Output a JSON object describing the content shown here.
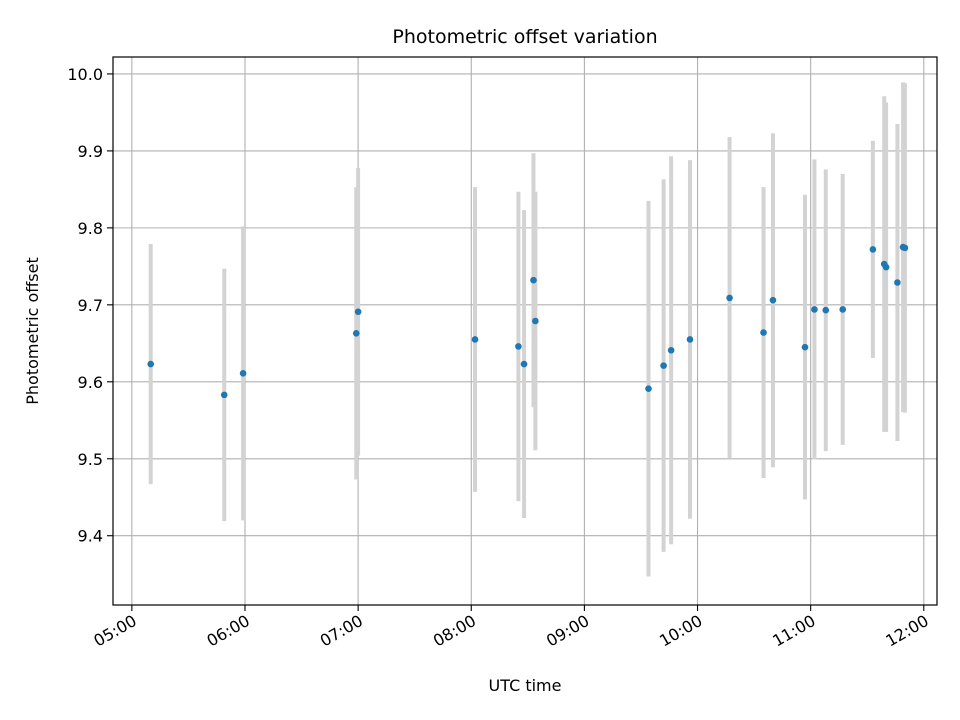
{
  "chart_data": {
    "type": "scatter",
    "title": "Photometric offset variation",
    "xlabel": "UTC time",
    "ylabel": "Photometric offset",
    "x_tick_labels": [
      "05:00",
      "06:00",
      "07:00",
      "08:00",
      "09:00",
      "10:00",
      "11:00",
      "12:00"
    ],
    "y_tick_labels": [
      "9.4",
      "9.5",
      "9.6",
      "9.7",
      "9.8",
      "9.9",
      "10.0"
    ],
    "xlim": [
      "04:50",
      "12:07"
    ],
    "ylim": [
      9.31,
      10.022
    ],
    "grid": true,
    "colors": {
      "points": "#1f77b4",
      "error_bars": "#d3d3d3",
      "grid": "#b0b0b0"
    },
    "points": [
      {
        "x": "05:10",
        "y": 9.623,
        "yerr": 0.156
      },
      {
        "x": "05:49",
        "y": 9.583,
        "yerr": 0.164
      },
      {
        "x": "05:59",
        "y": 9.611,
        "yerr": 0.191
      },
      {
        "x": "06:59",
        "y": 9.663,
        "yerr": 0.19
      },
      {
        "x": "07:00",
        "y": 9.691,
        "yerr": 0.187
      },
      {
        "x": "08:02",
        "y": 9.655,
        "yerr": 0.198
      },
      {
        "x": "08:25",
        "y": 9.646,
        "yerr": 0.201
      },
      {
        "x": "08:28",
        "y": 9.623,
        "yerr": 0.2
      },
      {
        "x": "08:33",
        "y": 9.732,
        "yerr": 0.165
      },
      {
        "x": "08:34",
        "y": 9.679,
        "yerr": 0.168
      },
      {
        "x": "09:34",
        "y": 9.591,
        "yerr": 0.244
      },
      {
        "x": "09:42",
        "y": 9.621,
        "yerr": 0.242
      },
      {
        "x": "09:46",
        "y": 9.641,
        "yerr": 0.252
      },
      {
        "x": "09:56",
        "y": 9.655,
        "yerr": 0.233
      },
      {
        "x": "10:17",
        "y": 9.709,
        "yerr": 0.209
      },
      {
        "x": "10:35",
        "y": 9.664,
        "yerr": 0.189
      },
      {
        "x": "10:40",
        "y": 9.706,
        "yerr": 0.217
      },
      {
        "x": "10:57",
        "y": 9.645,
        "yerr": 0.198
      },
      {
        "x": "11:02",
        "y": 9.694,
        "yerr": 0.195
      },
      {
        "x": "11:08",
        "y": 9.693,
        "yerr": 0.183
      },
      {
        "x": "11:17",
        "y": 9.694,
        "yerr": 0.176
      },
      {
        "x": "11:33",
        "y": 9.772,
        "yerr": 0.141
      },
      {
        "x": "11:39",
        "y": 9.753,
        "yerr": 0.218
      },
      {
        "x": "11:40",
        "y": 9.749,
        "yerr": 0.214
      },
      {
        "x": "11:46",
        "y": 9.729,
        "yerr": 0.206
      },
      {
        "x": "11:49",
        "y": 9.775,
        "yerr": 0.214
      },
      {
        "x": "11:50",
        "y": 9.774,
        "yerr": 0.214
      }
    ]
  }
}
